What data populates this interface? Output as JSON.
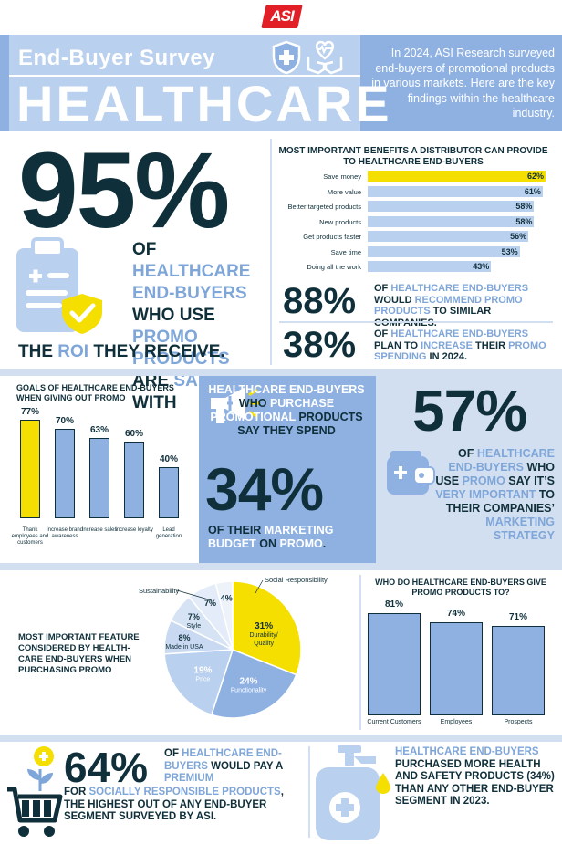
{
  "logo": {
    "text": "ASI"
  },
  "header": {
    "subtitle": "End-Buyer Survey",
    "title": "HEALTHCARE",
    "intro": "In 2024, ASI Research surveyed end-buyers of promotional products in various markets. Here are the key findings within the healthcare industry."
  },
  "satisfaction": {
    "percent": "95%",
    "line_parts": [
      "OF ",
      "HEALTHCARE END-BUYERS",
      " WHO USE ",
      "PROMO PRODUCTS",
      " ARE ",
      "SATISFIED",
      " WITH"
    ],
    "line2_parts": [
      "THE ",
      "ROI",
      " THEY RECEIVE."
    ]
  },
  "benefits": {
    "title": "MOST IMPORTANT BENEFITS A DISTRIBUTOR CAN PROVIDE TO HEALTHCARE END-BUYERS",
    "items": [
      {
        "label": "Save money",
        "value": 62,
        "display": "62%",
        "highlight": true
      },
      {
        "label": "More value",
        "value": 61,
        "display": "61%",
        "highlight": false
      },
      {
        "label": "Better targeted products",
        "value": 58,
        "display": "58%",
        "highlight": false
      },
      {
        "label": "New products",
        "value": 58,
        "display": "58%",
        "highlight": false
      },
      {
        "label": "Get products faster",
        "value": 56,
        "display": "56%",
        "highlight": false
      },
      {
        "label": "Save time",
        "value": 53,
        "display": "53%",
        "highlight": false
      },
      {
        "label": "Doing all the work",
        "value": 43,
        "display": "43%",
        "highlight": false
      }
    ]
  },
  "recommend": {
    "percent": "88%",
    "parts": [
      "OF ",
      "HEALTHCARE END-BUYERS",
      " WOULD ",
      "RECOMMEND PROMO PRODUCTS",
      " TO SIMILAR COMPANIES."
    ]
  },
  "increase": {
    "percent": "38%",
    "parts": [
      "OF ",
      "HEALTHCARE END-BUYERS",
      " PLAN TO ",
      "INCREASE",
      " THEIR ",
      "PROMO SPENDING",
      " IN 2024."
    ]
  },
  "goals": {
    "title": "GOALS OF HEALTHCARE END-BUYERS WHEN GIVING OUT PROMO",
    "items": [
      {
        "label": "Thank employees and customers",
        "value": 77,
        "display": "77%",
        "highlight": true
      },
      {
        "label": "Increase brand awareness",
        "value": 70,
        "display": "70%",
        "highlight": false
      },
      {
        "label": "Increase sales",
        "value": 63,
        "display": "63%",
        "highlight": false
      },
      {
        "label": "Increase loyalty",
        "value": 60,
        "display": "60%",
        "highlight": false
      },
      {
        "label": "Lead generation",
        "value": 40,
        "display": "40%",
        "highlight": false
      }
    ]
  },
  "budget": {
    "parts1": [
      "HEALTHCARE END-BUYERS",
      " WHO ",
      "PURCHASE",
      " ",
      "PROMOTIONAL",
      " PRODUCTS SAY THEY SPEND"
    ],
    "percent": "34%",
    "parts2": [
      "OF THEIR ",
      "MARKETING BUDGET",
      " ON ",
      "PROMO",
      "."
    ]
  },
  "important": {
    "percent": "57%",
    "parts": [
      "OF ",
      "HEALTHCARE END-BUYERS",
      " WHO USE ",
      "PROMO",
      " SAY IT’S ",
      "VERY IMPORTANT",
      " TO THEIR COMPANIES’ ",
      "MARKETING STRATEGY"
    ]
  },
  "features": {
    "title": "MOST IMPORTANT FEATURE CONSIDERED BY HEALTH-CARE END-BUYERS WHEN PURCHASING PROMO",
    "slices": [
      {
        "label": "Durability/ Quality",
        "value": 31,
        "display": "31%"
      },
      {
        "label": "Functionality",
        "value": 24,
        "display": "24%"
      },
      {
        "label": "Price",
        "value": 19,
        "display": "19%"
      },
      {
        "label": "Made in USA",
        "value": 8,
        "display": "8%"
      },
      {
        "label": "Style",
        "value": 7,
        "display": "7%"
      },
      {
        "label": "Sustainability",
        "value": 7,
        "display": "7%"
      },
      {
        "label": "Social Responsibility",
        "value": 4,
        "display": "4%"
      }
    ]
  },
  "recipients": {
    "title": "WHO DO HEALTHCARE END-BUYERS GIVE PROMO PRODUCTS TO?",
    "items": [
      {
        "label": "Current Customers",
        "value": 81,
        "display": "81%"
      },
      {
        "label": "Employees",
        "value": 74,
        "display": "74%"
      },
      {
        "label": "Prospects",
        "value": 71,
        "display": "71%"
      }
    ]
  },
  "premium": {
    "percent": "64%",
    "parts1": [
      "OF ",
      "HEALTHCARE END-BUYERS",
      " WOULD PAY A ",
      "PREMIUM"
    ],
    "parts2": [
      "FOR ",
      "SOCIALLY RESPONSIBLE PRODUCTS",
      ", THE HIGHEST OUT OF ANY END-BUYER SEGMENT SURVEYED BY ASI."
    ]
  },
  "health_safety": {
    "parts": [
      "HEALTHCARE END-BUYERS",
      " PURCHASED MORE HEALTH AND SAFETY PRODUCTS (34%) THAN ANY OTHER END-BUYER SEGMENT IN 2023."
    ]
  },
  "chart_data": [
    {
      "type": "bar",
      "title": "MOST IMPORTANT BENEFITS A DISTRIBUTOR CAN PROVIDE TO HEALTHCARE END-BUYERS",
      "categories": [
        "Save money",
        "More value",
        "Better targeted products",
        "New products",
        "Get products faster",
        "Save time",
        "Doing all the work"
      ],
      "values": [
        62,
        61,
        58,
        58,
        56,
        53,
        43
      ]
    },
    {
      "type": "bar",
      "title": "GOALS OF HEALTHCARE END-BUYERS WHEN GIVING OUT PROMO",
      "categories": [
        "Thank employees and customers",
        "Increase brand awareness",
        "Increase sales",
        "Increase loyalty",
        "Lead generation"
      ],
      "values": [
        77,
        70,
        63,
        60,
        40
      ]
    },
    {
      "type": "pie",
      "title": "MOST IMPORTANT FEATURE CONSIDERED BY HEALTH-CARE END-BUYERS WHEN PURCHASING PROMO",
      "categories": [
        "Durability/ Quality",
        "Functionality",
        "Price",
        "Made in USA",
        "Style",
        "Sustainability",
        "Social Responsibility"
      ],
      "values": [
        31,
        24,
        19,
        8,
        7,
        7,
        4
      ]
    },
    {
      "type": "bar",
      "title": "WHO DO HEALTHCARE END-BUYERS GIVE PROMO PRODUCTS TO?",
      "categories": [
        "Current Customers",
        "Employees",
        "Prospects"
      ],
      "values": [
        81,
        74,
        71
      ]
    }
  ],
  "colors": {
    "navy": "#0f2f3a",
    "blue": "#7fa6d9",
    "light_blue": "#b9d0ef",
    "yellow": "#f5df00",
    "band": "#d2dff0"
  }
}
